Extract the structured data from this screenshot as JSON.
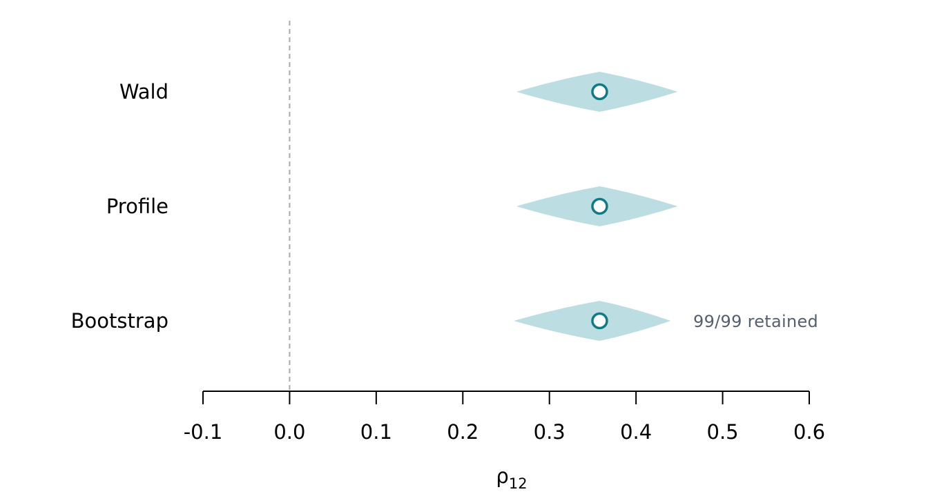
{
  "colors": {
    "ci_fill": "#bcdde1",
    "point_stroke": "#0f7b87",
    "point_fill": "#ffffff",
    "reference_line": "#a9a9a9",
    "axis": "#000000",
    "annotation": "#555f6d"
  },
  "chart_data": {
    "type": "forest",
    "xlabel": "ρ",
    "xlabel_subscript": "12",
    "xlim": [
      -0.1,
      0.6
    ],
    "xticks": [
      -0.1,
      0.0,
      0.1,
      0.2,
      0.3,
      0.4,
      0.5,
      0.6
    ],
    "xtick_labels": [
      "-0.1",
      "0.0",
      "0.1",
      "0.2",
      "0.3",
      "0.4",
      "0.5",
      "0.6"
    ],
    "reference_line": 0.0,
    "grid": false,
    "rows": [
      {
        "label": "Wald",
        "estimate": 0.358,
        "lower": 0.262,
        "upper": 0.448,
        "annotation": ""
      },
      {
        "label": "Profile",
        "estimate": 0.358,
        "lower": 0.262,
        "upper": 0.448,
        "annotation": ""
      },
      {
        "label": "Bootstrap",
        "estimate": 0.358,
        "lower": 0.259,
        "upper": 0.44,
        "annotation": "99/99 retained"
      }
    ]
  }
}
